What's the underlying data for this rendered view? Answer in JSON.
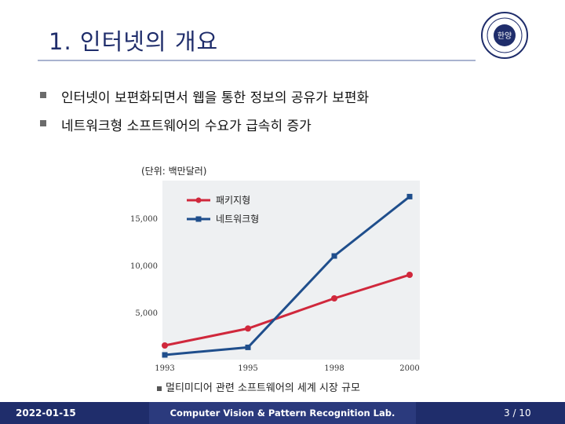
{
  "slide": {
    "title": "1. 인터넷의 개요",
    "bullets": [
      "인터넷이 보편화되면서 웹을 통한 정보의 공유가 보편화",
      "네트워크형 소프트웨어의 수요가 급속히 증가"
    ],
    "caption": "멀티미디어 관련 소프트웨어의 세계 시장 규모",
    "logo_text": "한양"
  },
  "footer": {
    "date": "2022-01-15",
    "lab": "Computer Vision & Pattern Recognition Lab.",
    "page": "3 / 10"
  },
  "colors": {
    "title": "#1f2d6b",
    "footer_bg": "#1f2d6b",
    "package_series": "#d0283c",
    "network_series": "#1f4e8c"
  },
  "chart_data": {
    "type": "line",
    "unit_label": "(단위: 백만달러)",
    "x": [
      "1993",
      "1995",
      "1998",
      "2000"
    ],
    "series": [
      {
        "name": "패키지형",
        "values": [
          1500,
          3300,
          6500,
          9000
        ],
        "color": "#d0283c"
      },
      {
        "name": "네트워크형",
        "values": [
          500,
          1300,
          11000,
          17300
        ],
        "color": "#1f4e8c"
      }
    ],
    "y_ticks": [
      "5,000",
      "10,000",
      "15,000"
    ],
    "y_tick_values": [
      5000,
      10000,
      15000
    ],
    "ylim": [
      0,
      19000
    ],
    "legend_position": "top-center"
  }
}
